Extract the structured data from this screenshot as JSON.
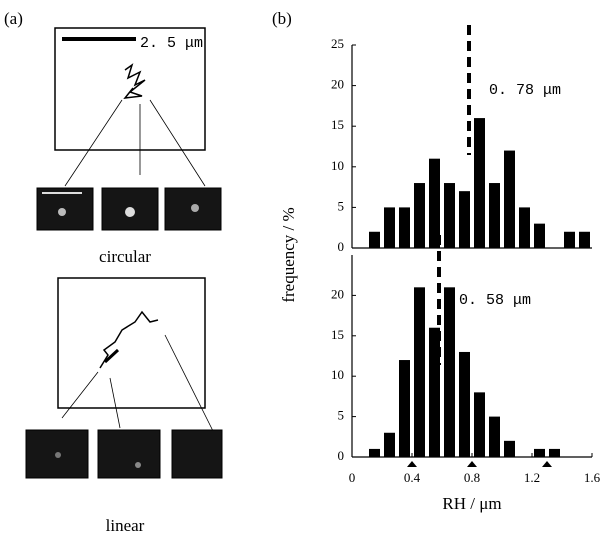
{
  "panel_labels": [
    "(a)",
    "(b)"
  ],
  "panel_a": {
    "scale_label": "2. 5 μm",
    "labels": [
      "circular",
      "linear"
    ]
  },
  "chart_data": [
    {
      "type": "histogram",
      "ylabel": "frequency / %",
      "bins": [
        0.1,
        0.2,
        0.3,
        0.4,
        0.5,
        0.6,
        0.7,
        0.8,
        0.9,
        1.0,
        1.1,
        1.2,
        1.3,
        1.4,
        1.5,
        1.6
      ],
      "values": [
        2,
        5,
        5,
        8,
        11,
        8,
        7,
        16,
        8,
        12,
        5,
        3,
        0,
        2,
        2
      ],
      "color": "#000000",
      "xlim": [
        0,
        1.6
      ],
      "ylim": [
        0,
        25
      ],
      "yticks": [
        0,
        5,
        10,
        15,
        20,
        25
      ],
      "mean": 0.78,
      "mean_label": "0. 78 μm"
    },
    {
      "type": "histogram",
      "xlabel": "RH / μm",
      "bins": [
        0.1,
        0.2,
        0.3,
        0.4,
        0.5,
        0.6,
        0.7,
        0.8,
        0.9,
        1.0,
        1.1,
        1.2,
        1.3,
        1.4,
        1.5,
        1.6
      ],
      "values": [
        1,
        3,
        12,
        21,
        16,
        21,
        13,
        8,
        5,
        2,
        0,
        1,
        1,
        0,
        0
      ],
      "color": "#000000",
      "xlim": [
        0,
        1.6
      ],
      "ylim": [
        0,
        25
      ],
      "yticks": [
        0,
        5,
        10,
        15,
        20
      ],
      "xticks": [
        0,
        0.4,
        0.8,
        1.2,
        1.6
      ],
      "markers": [
        0.4,
        0.8,
        1.3
      ],
      "mean": 0.58,
      "mean_label": "0. 58 μm"
    }
  ]
}
